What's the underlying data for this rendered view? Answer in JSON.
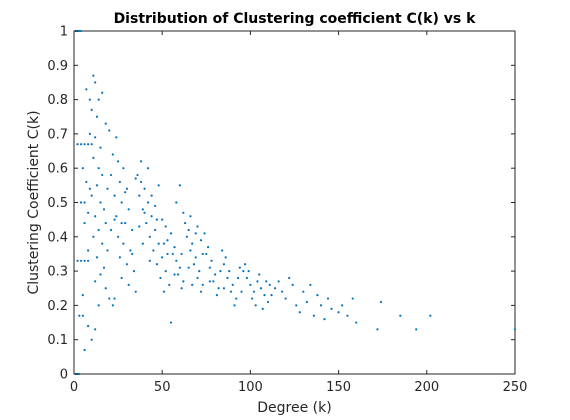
{
  "chart_data": {
    "type": "scatter",
    "title": "Distribution of Clustering coefficient C(k) vs k",
    "xlabel": "Degree (k)",
    "ylabel": "Clustering Coefficient C(k)",
    "xlim": [
      0,
      250
    ],
    "ylim": [
      0,
      1
    ],
    "xticks": [
      0,
      50,
      100,
      150,
      200,
      250
    ],
    "yticks": [
      0,
      0.1,
      0.2,
      0.3,
      0.4,
      0.5,
      0.6,
      0.7,
      0.8,
      0.9,
      1
    ],
    "xtick_labels": [
      "0",
      "50",
      "100",
      "150",
      "200",
      "250"
    ],
    "ytick_labels": [
      "0",
      "0.1",
      "0.2",
      "0.3",
      "0.4",
      "0.5",
      "0.6",
      "0.7",
      "0.8",
      "0.9",
      "1"
    ],
    "grid": false,
    "marker_color": "#0072BD",
    "series": [
      {
        "points": [
          [
            1,
            1
          ],
          [
            2,
            1
          ],
          [
            3,
            1
          ],
          [
            4,
            1
          ],
          [
            1,
            0
          ],
          [
            2,
            0
          ],
          [
            3,
            0
          ],
          [
            2,
            0.67
          ],
          [
            4,
            0.67
          ],
          [
            6,
            0.67
          ],
          [
            8,
            0.67
          ],
          [
            10,
            0.67
          ],
          [
            2,
            0.33
          ],
          [
            4,
            0.33
          ],
          [
            6,
            0.33
          ],
          [
            8,
            0.33
          ],
          [
            3,
            0.17
          ],
          [
            5,
            0.17
          ],
          [
            4,
            0.5
          ],
          [
            6,
            0.5
          ],
          [
            8,
            0.47
          ],
          [
            7,
            0.83
          ],
          [
            9,
            0.8
          ],
          [
            8,
            0.14
          ],
          [
            6,
            0.07
          ],
          [
            10,
            0.1
          ],
          [
            12,
            0.13
          ],
          [
            5,
            0.23
          ],
          [
            11,
            0.87
          ],
          [
            12,
            0.85
          ],
          [
            14,
            0.8
          ],
          [
            10,
            0.77
          ],
          [
            13,
            0.75
          ],
          [
            16,
            0.82
          ],
          [
            18,
            0.73
          ],
          [
            9,
            0.7
          ],
          [
            12,
            0.69
          ],
          [
            15,
            0.66
          ],
          [
            11,
            0.63
          ],
          [
            14,
            0.6
          ],
          [
            16,
            0.58
          ],
          [
            13,
            0.55
          ],
          [
            10,
            0.52
          ],
          [
            15,
            0.5
          ],
          [
            17,
            0.48
          ],
          [
            12,
            0.46
          ],
          [
            18,
            0.44
          ],
          [
            14,
            0.42
          ],
          [
            11,
            0.4
          ],
          [
            16,
            0.38
          ],
          [
            19,
            0.36
          ],
          [
            13,
            0.34
          ],
          [
            17,
            0.31
          ],
          [
            15,
            0.29
          ],
          [
            12,
            0.27
          ],
          [
            18,
            0.25
          ],
          [
            20,
            0.22
          ],
          [
            14,
            0.2
          ],
          [
            22,
            0.2
          ],
          [
            24,
            0.69
          ],
          [
            20,
            0.71
          ],
          [
            22,
            0.64
          ],
          [
            25,
            0.62
          ],
          [
            28,
            0.6
          ],
          [
            21,
            0.58
          ],
          [
            26,
            0.56
          ],
          [
            30,
            0.54
          ],
          [
            23,
            0.52
          ],
          [
            27,
            0.5
          ],
          [
            31,
            0.48
          ],
          [
            24,
            0.46
          ],
          [
            29,
            0.44
          ],
          [
            33,
            0.42
          ],
          [
            25,
            0.4
          ],
          [
            28,
            0.38
          ],
          [
            32,
            0.36
          ],
          [
            26,
            0.34
          ],
          [
            30,
            0.32
          ],
          [
            34,
            0.3
          ],
          [
            27,
            0.28
          ],
          [
            31,
            0.26
          ],
          [
            35,
            0.24
          ],
          [
            23,
            0.22
          ],
          [
            36,
            0.58
          ],
          [
            38,
            0.56
          ],
          [
            40,
            0.54
          ],
          [
            37,
            0.52
          ],
          [
            42,
            0.5
          ],
          [
            39,
            0.48
          ],
          [
            44,
            0.46
          ],
          [
            41,
            0.44
          ],
          [
            46,
            0.42
          ],
          [
            43,
            0.4
          ],
          [
            48,
            0.38
          ],
          [
            45,
            0.36
          ],
          [
            50,
            0.34
          ],
          [
            47,
            0.32
          ],
          [
            52,
            0.3
          ],
          [
            49,
            0.28
          ],
          [
            54,
            0.26
          ],
          [
            51,
            0.24
          ],
          [
            38,
            0.62
          ],
          [
            42,
            0.6
          ],
          [
            35,
            0.57
          ],
          [
            40,
            0.47
          ],
          [
            44,
            0.52
          ],
          [
            48,
            0.55
          ],
          [
            46,
            0.49
          ],
          [
            50,
            0.45
          ],
          [
            52,
            0.43
          ],
          [
            55,
            0.41
          ],
          [
            53,
            0.39
          ],
          [
            57,
            0.37
          ],
          [
            56,
            0.35
          ],
          [
            58,
            0.33
          ],
          [
            60,
            0.31
          ],
          [
            59,
            0.29
          ],
          [
            62,
            0.27
          ],
          [
            61,
            0.25
          ],
          [
            55,
            0.15
          ],
          [
            63,
            0.44
          ],
          [
            65,
            0.42
          ],
          [
            64,
            0.4
          ],
          [
            67,
            0.38
          ],
          [
            66,
            0.36
          ],
          [
            69,
            0.34
          ],
          [
            68,
            0.32
          ],
          [
            71,
            0.3
          ],
          [
            70,
            0.28
          ],
          [
            73,
            0.26
          ],
          [
            72,
            0.24
          ],
          [
            58,
            0.5
          ],
          [
            60,
            0.55
          ],
          [
            62,
            0.47
          ],
          [
            66,
            0.46
          ],
          [
            70,
            0.43
          ],
          [
            74,
            0.41
          ],
          [
            72,
            0.39
          ],
          [
            76,
            0.37
          ],
          [
            75,
            0.35
          ],
          [
            78,
            0.33
          ],
          [
            77,
            0.31
          ],
          [
            80,
            0.29
          ],
          [
            79,
            0.27
          ],
          [
            82,
            0.25
          ],
          [
            81,
            0.23
          ],
          [
            84,
            0.36
          ],
          [
            86,
            0.34
          ],
          [
            85,
            0.32
          ],
          [
            88,
            0.3
          ],
          [
            87,
            0.28
          ],
          [
            90,
            0.26
          ],
          [
            89,
            0.24
          ],
          [
            92,
            0.22
          ],
          [
            91,
            0.2
          ],
          [
            94,
            0.31
          ],
          [
            96,
            0.3
          ],
          [
            98,
            0.28
          ],
          [
            97,
            0.32
          ],
          [
            100,
            0.26
          ],
          [
            102,
            0.24
          ],
          [
            101,
            0.22
          ],
          [
            104,
            0.27
          ],
          [
            106,
            0.25
          ],
          [
            108,
            0.23
          ],
          [
            103,
            0.2
          ],
          [
            107,
            0.19
          ],
          [
            110,
            0.21
          ],
          [
            112,
            0.23
          ],
          [
            114,
            0.25
          ],
          [
            116,
            0.27
          ],
          [
            118,
            0.24
          ],
          [
            120,
            0.22
          ],
          [
            122,
            0.28
          ],
          [
            124,
            0.26
          ],
          [
            126,
            0.2
          ],
          [
            128,
            0.18
          ],
          [
            130,
            0.24
          ],
          [
            132,
            0.21
          ],
          [
            134,
            0.26
          ],
          [
            136,
            0.17
          ],
          [
            138,
            0.23
          ],
          [
            140,
            0.2
          ],
          [
            142,
            0.16
          ],
          [
            144,
            0.22
          ],
          [
            146,
            0.19
          ],
          [
            150,
            0.18
          ],
          [
            152,
            0.2
          ],
          [
            155,
            0.17
          ],
          [
            158,
            0.22
          ],
          [
            160,
            0.15
          ],
          [
            172,
            0.13
          ],
          [
            174,
            0.21
          ],
          [
            185,
            0.17
          ],
          [
            194,
            0.13
          ],
          [
            202,
            0.17
          ],
          [
            250,
            0.13
          ],
          [
            5,
            0.6
          ],
          [
            7,
            0.56
          ],
          [
            9,
            0.54
          ],
          [
            8,
            0.36
          ],
          [
            6,
            0.44
          ],
          [
            19,
            0.54
          ],
          [
            21,
            0.42
          ],
          [
            23,
            0.45
          ],
          [
            27,
            0.44
          ],
          [
            29,
            0.53
          ],
          [
            33,
            0.35
          ],
          [
            37,
            0.43
          ],
          [
            39,
            0.38
          ],
          [
            43,
            0.33
          ],
          [
            47,
            0.45
          ],
          [
            51,
            0.38
          ],
          [
            53,
            0.35
          ],
          [
            57,
            0.29
          ],
          [
            61,
            0.35
          ],
          [
            65,
            0.31
          ],
          [
            67,
            0.26
          ],
          [
            69,
            0.41
          ],
          [
            73,
            0.35
          ],
          [
            77,
            0.27
          ],
          [
            83,
            0.3
          ],
          [
            85,
            0.25
          ],
          [
            93,
            0.28
          ],
          [
            95,
            0.24
          ],
          [
            99,
            0.3
          ],
          [
            105,
            0.29
          ],
          [
            109,
            0.27
          ],
          [
            111,
            0.26
          ]
        ]
      }
    ]
  }
}
